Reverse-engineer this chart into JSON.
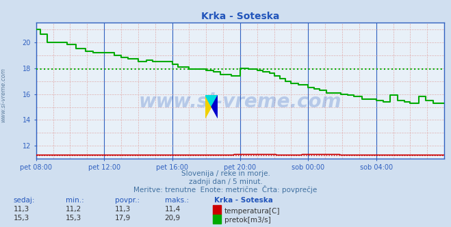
{
  "title": "Krka - Soteska",
  "bg_color": "#d0dff0",
  "plot_bg_color": "#e8f0f8",
  "x_min": 0,
  "x_max": 288,
  "y_min": 11,
  "y_max": 21.5,
  "y_ticks": [
    12,
    14,
    16,
    18,
    20
  ],
  "x_tick_labels": [
    "pet 08:00",
    "pet 12:00",
    "pet 16:00",
    "pet 20:00",
    "sob 00:00",
    "sob 04:00"
  ],
  "x_tick_positions": [
    0,
    48,
    96,
    144,
    192,
    240
  ],
  "avg_temp": 11.3,
  "avg_pretok": 17.9,
  "temp_color": "#cc0000",
  "pretok_color": "#00aa00",
  "watermark_text": "www.si-vreme.com",
  "subtitle1": "Slovenija / reke in morje.",
  "subtitle2": "zadnji dan / 5 minut.",
  "subtitle3": "Meritve: trenutne  Enote: metrične  Črta: povprečje",
  "table_headers": [
    "sedaj:",
    "min.:",
    "povpr.:",
    "maks.:",
    "Krka - Soteska"
  ],
  "row1": [
    "11,3",
    "11,2",
    "11,3",
    "11,4"
  ],
  "row2": [
    "15,3",
    "15,3",
    "17,9",
    "20,9"
  ],
  "row1_label": "temperatura[C]",
  "row2_label": "pretok[m3/s]",
  "left_label": "www.si-vreme.com",
  "axis_color": "#3060c0",
  "tick_color": "#3060c0",
  "title_color": "#2255bb",
  "subtitle_color": "#4070a0",
  "table_header_color": "#2255bb",
  "table_val_color": "#333333"
}
